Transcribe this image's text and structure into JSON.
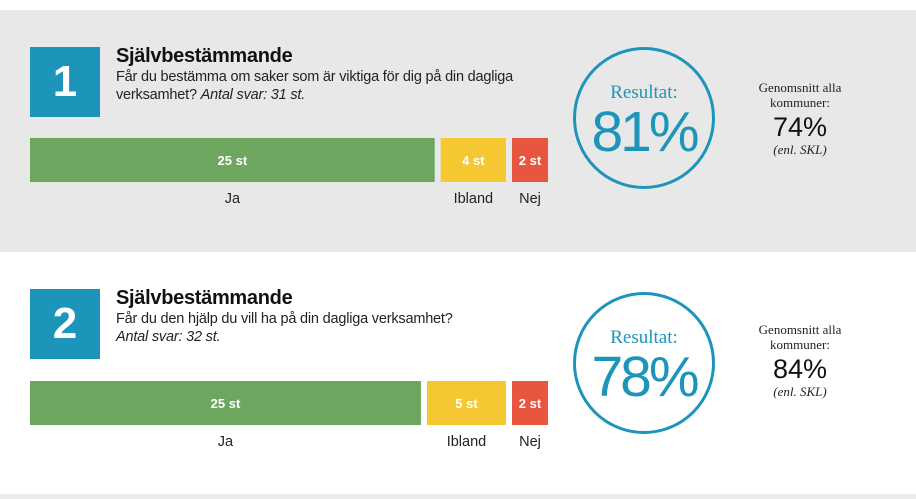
{
  "colors": {
    "ja": "#6da65f",
    "ibland": "#f5c832",
    "nej": "#e8563f",
    "accent": "#1d95ba",
    "panel_grey": "#e8e8e8"
  },
  "chart_data": [
    {
      "type": "bar",
      "number": "1",
      "title": "Självbestämmande",
      "question": "Får du bestämma om saker som är viktiga för dig på din dagliga verksamhet?",
      "count_text": "Antal svar: 31 st.",
      "series": [
        {
          "name": "Ja",
          "value": 25,
          "label": "25 st"
        },
        {
          "name": "Ibland",
          "value": 4,
          "label": "4 st"
        },
        {
          "name": "Nej",
          "value": 2,
          "label": "2 st"
        }
      ],
      "result_label": "Resultat:",
      "result_value": "81%",
      "average_label": "Genomsnitt alla kommuner:",
      "average_value": "74%",
      "average_source": "(enl. SKL)"
    },
    {
      "type": "bar",
      "number": "2",
      "title": "Självbestämmande",
      "question": "Får du den hjälp du vill ha på din dagliga verksamhet?",
      "count_text": "Antal svar: 32 st.",
      "series": [
        {
          "name": "Ja",
          "value": 25,
          "label": "25 st"
        },
        {
          "name": "Ibland",
          "value": 5,
          "label": "5 st"
        },
        {
          "name": "Nej",
          "value": 2,
          "label": "2 st"
        }
      ],
      "result_label": "Resultat:",
      "result_value": "78%",
      "average_label": "Genomsnitt alla kommuner:",
      "average_value": "84%",
      "average_source": "(enl. SKL)"
    }
  ]
}
